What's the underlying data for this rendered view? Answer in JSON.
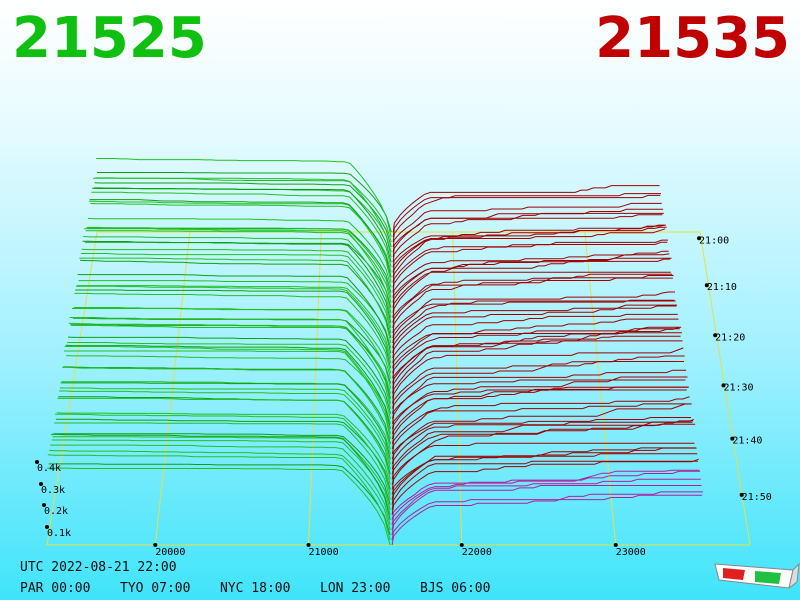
{
  "bid": "21525",
  "ask": "21535",
  "price_ticks": [
    "20000",
    "21000",
    "22000",
    "23000"
  ],
  "time_ticks": [
    "21:00",
    "21:10",
    "21:20",
    "21:30",
    "21:40",
    "21:50"
  ],
  "depth_ticks": [
    "0.4k",
    "0.3k",
    "0.2k",
    "0.1k"
  ],
  "footer": {
    "utc": "UTC 2022-08-21 22:00",
    "clocks": [
      "PAR 00:00",
      "TYO 07:00",
      "NYC 18:00",
      "LON 23:00",
      "BJS 06:00"
    ]
  }
}
